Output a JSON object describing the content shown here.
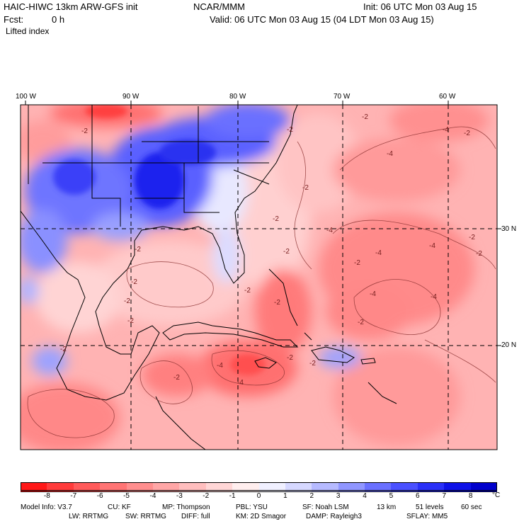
{
  "header": {
    "model_title": "HAIC-HIWC 13km ARW-GFS init",
    "org": "NCAR/MMM",
    "init": "Init: 06 UTC Mon 03 Aug 15",
    "fcst_label": "Fcst:",
    "fcst_value": "0 h",
    "valid": "Valid: 06 UTC Mon 03 Aug 15 (04 LDT Mon 03 Aug 15)",
    "field": "Lifted index"
  },
  "map": {
    "lon_labels": [
      "100 W",
      "90 W",
      "80 W",
      "70 W",
      "60 W"
    ],
    "lat_labels": [
      "30 N",
      "20 N"
    ],
    "contour_labels": [
      "-2",
      "-2",
      "-2",
      "-2",
      "-2",
      "-2",
      "-2",
      "-2",
      "-2",
      "-2",
      "-2",
      "-2",
      "-2",
      "-2",
      "-2",
      "-4",
      "-4",
      "-4",
      "-4",
      "-4",
      "-4",
      "-4",
      "-4",
      "-4",
      "-2",
      "-2",
      "-2",
      "-2",
      "-2",
      "-2"
    ]
  },
  "colorbar": {
    "labels": [
      "-8",
      "-7",
      "-6",
      "-5",
      "-4",
      "-3",
      "-2",
      "-1",
      "0",
      "1",
      "2",
      "3",
      "4",
      "5",
      "6",
      "7",
      "8"
    ],
    "unit": "°C",
    "colors": [
      "#ff1818",
      "#ff3b3b",
      "#ff5a5a",
      "#ff7474",
      "#ff8e8e",
      "#ffa6a6",
      "#ffbebe",
      "#ffd6d6",
      "#ffeeee",
      "#f0f0ff",
      "#d6d8ff",
      "#b6baff",
      "#9096ff",
      "#6a70ff",
      "#4a50ff",
      "#2a30f8",
      "#0e12e8",
      "#0000cc"
    ]
  },
  "model_info": {
    "line1": [
      "Model Info: V3.7",
      "CU: KF",
      "MP: Thompson",
      "PBL: YSU",
      "SF: Noah LSM",
      "13 km",
      "51 levels",
      "60 sec"
    ],
    "line2": [
      "LW: RRTMG",
      "SW: RRTMG",
      "DIFF: full",
      "KM: 2D Smagor",
      "DAMP: Rayleigh3",
      "SFLAY: MM5"
    ]
  }
}
